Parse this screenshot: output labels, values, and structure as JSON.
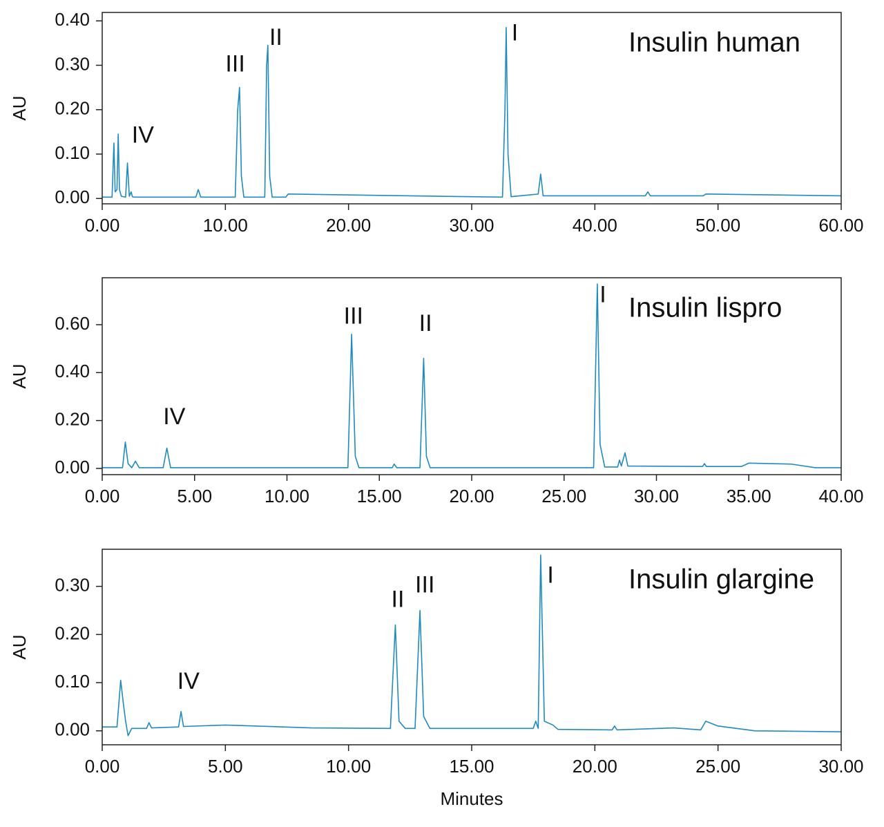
{
  "chart_data": [
    {
      "type": "line",
      "label": "Insulin human",
      "ylabel": "AU",
      "x": [
        0,
        0.8,
        0.95,
        1.05,
        1.2,
        1.3,
        1.4,
        1.55,
        1.9,
        2.05,
        2.2,
        2.35,
        2.45,
        2.6,
        5.5,
        7.6,
        7.8,
        8.0,
        10.8,
        11.0,
        11.15,
        11.3,
        11.5,
        13.2,
        13.35,
        13.45,
        13.6,
        13.8,
        14.9,
        15.1,
        32.5,
        32.7,
        32.8,
        32.95,
        33.2,
        35.4,
        35.6,
        35.8,
        44.1,
        44.3,
        44.5,
        48.8,
        49.0,
        60
      ],
      "series": [
        {
          "color": "#1f8ac0",
          "values": [
            0.003,
            0.003,
            0.125,
            0.015,
            0.02,
            0.145,
            0.02,
            0.005,
            0.003,
            0.08,
            0.005,
            0.015,
            0.004,
            0.003,
            0.003,
            0.003,
            0.02,
            0.003,
            0.003,
            0.2,
            0.25,
            0.05,
            0.003,
            0.003,
            0.3,
            0.345,
            0.05,
            0.003,
            0.003,
            0.01,
            0.003,
            0.2,
            0.385,
            0.1,
            0.004,
            0.01,
            0.055,
            0.006,
            0.006,
            0.015,
            0.006,
            0.006,
            0.01,
            0.006
          ]
        }
      ],
      "xlim": [
        0,
        60
      ],
      "ylim": [
        -0.012,
        0.419
      ],
      "xticks": [
        {
          "value": 0,
          "label": "0.00"
        },
        {
          "value": 10,
          "label": "10.00"
        },
        {
          "value": 20,
          "label": "20.00"
        },
        {
          "value": 30,
          "label": "30.00"
        },
        {
          "value": 40,
          "label": "40.00"
        },
        {
          "value": 50,
          "label": "50.00"
        },
        {
          "value": 60,
          "label": "60.00"
        }
      ],
      "yticks": [
        {
          "value": 0,
          "label": "0.00"
        },
        {
          "value": 0.1,
          "label": "0.10"
        },
        {
          "value": 0.2,
          "label": "0.20"
        },
        {
          "value": 0.3,
          "label": "0.30"
        },
        {
          "value": 0.4,
          "label": "0.40"
        }
      ],
      "annotations": [
        {
          "text": "IV",
          "x": 3.3,
          "y": 0.14
        },
        {
          "text": "III",
          "x": 10.8,
          "y": 0.3
        },
        {
          "text": "II",
          "x": 14.1,
          "y": 0.36
        },
        {
          "text": "I",
          "x": 33.5,
          "y": 0.37
        }
      ]
    },
    {
      "type": "line",
      "label": "Insulin lispro",
      "ylabel": "AU",
      "x": [
        0,
        1.1,
        1.25,
        1.4,
        1.6,
        1.8,
        2.0,
        3.3,
        3.5,
        3.7,
        11.2,
        13.3,
        13.5,
        13.7,
        13.9,
        15.7,
        15.8,
        15.95,
        17.2,
        17.4,
        17.55,
        17.75,
        26.6,
        26.8,
        26.95,
        27.2,
        27.9,
        28.0,
        28.1,
        28.3,
        28.45,
        32.5,
        32.6,
        32.7,
        34.6,
        35.0,
        37.3,
        38.6,
        40
      ],
      "series": [
        {
          "color": "#1f8ac0",
          "values": [
            0.003,
            0.003,
            0.11,
            0.02,
            0.003,
            0.03,
            0.003,
            0.003,
            0.085,
            0.003,
            0.003,
            0.003,
            0.56,
            0.05,
            0.003,
            0.003,
            0.018,
            0.003,
            0.003,
            0.46,
            0.05,
            0.003,
            0.003,
            0.77,
            0.1,
            0.006,
            0.006,
            0.035,
            0.01,
            0.065,
            0.01,
            0.008,
            0.02,
            0.008,
            0.008,
            0.022,
            0.018,
            0.003,
            0.003
          ]
        }
      ],
      "xlim": [
        0,
        40
      ],
      "ylim": [
        -0.026,
        0.796
      ],
      "xticks": [
        {
          "value": 0,
          "label": "0.00"
        },
        {
          "value": 5,
          "label": "5.00"
        },
        {
          "value": 10,
          "label": "10.00"
        },
        {
          "value": 15,
          "label": "15.00"
        },
        {
          "value": 20,
          "label": "20.00"
        },
        {
          "value": 25,
          "label": "25.00"
        },
        {
          "value": 30,
          "label": "30.00"
        },
        {
          "value": 35,
          "label": "35.00"
        },
        {
          "value": 40,
          "label": "40.00"
        }
      ],
      "yticks": [
        {
          "value": 0,
          "label": "0.00"
        },
        {
          "value": 0.2,
          "label": "0.20"
        },
        {
          "value": 0.4,
          "label": "0.40"
        },
        {
          "value": 0.6,
          "label": "0.60"
        }
      ],
      "annotations": [
        {
          "text": "IV",
          "x": 3.9,
          "y": 0.21
        },
        {
          "text": "III",
          "x": 13.6,
          "y": 0.63
        },
        {
          "text": "II",
          "x": 17.5,
          "y": 0.6
        },
        {
          "text": "I",
          "x": 27.1,
          "y": 0.72
        }
      ]
    },
    {
      "type": "line",
      "label": "Insulin glargine",
      "ylabel": "AU",
      "xlabel": "Minutes",
      "x": [
        0,
        0.6,
        0.75,
        0.85,
        0.95,
        1.05,
        1.2,
        1.8,
        1.9,
        2.0,
        3.1,
        3.2,
        3.3,
        5.0,
        6.2,
        8.5,
        11.7,
        11.9,
        12.05,
        12.3,
        12.7,
        12.9,
        13.05,
        13.3,
        17.5,
        17.6,
        17.7,
        17.8,
        17.95,
        18.3,
        18.5,
        20.7,
        20.8,
        20.9,
        23.2,
        24.3,
        24.5,
        25.0,
        26.5,
        30
      ],
      "series": [
        {
          "color": "#1f8ac0",
          "values": [
            0.008,
            0.008,
            0.105,
            0.06,
            0.02,
            -0.01,
            0.005,
            0.005,
            0.017,
            0.006,
            0.008,
            0.04,
            0.009,
            0.012,
            0.01,
            0.006,
            0.005,
            0.22,
            0.02,
            0.005,
            0.005,
            0.25,
            0.03,
            0.005,
            0.005,
            0.02,
            0.005,
            0.365,
            0.02,
            0.012,
            0.003,
            0.002,
            0.01,
            0.002,
            0.006,
            0.002,
            0.02,
            0.01,
            0.0,
            -0.002
          ]
        }
      ],
      "xlim": [
        0,
        30
      ],
      "ylim": [
        -0.029,
        0.377
      ],
      "xticks": [
        {
          "value": 0,
          "label": "0.00"
        },
        {
          "value": 5,
          "label": "5.00"
        },
        {
          "value": 10,
          "label": "10.00"
        },
        {
          "value": 15,
          "label": "15.00"
        },
        {
          "value": 20,
          "label": "20.00"
        },
        {
          "value": 25,
          "label": "25.00"
        },
        {
          "value": 30,
          "label": "30.00"
        }
      ],
      "yticks": [
        {
          "value": 0,
          "label": "0.00"
        },
        {
          "value": 0.1,
          "label": "0.10"
        },
        {
          "value": 0.2,
          "label": "0.20"
        },
        {
          "value": 0.3,
          "label": "0.30"
        }
      ],
      "annotations": [
        {
          "text": "IV",
          "x": 3.5,
          "y": 0.1
        },
        {
          "text": "II",
          "x": 12.0,
          "y": 0.27
        },
        {
          "text": "III",
          "x": 13.1,
          "y": 0.3
        },
        {
          "text": "I",
          "x": 18.2,
          "y": 0.32
        }
      ]
    }
  ]
}
